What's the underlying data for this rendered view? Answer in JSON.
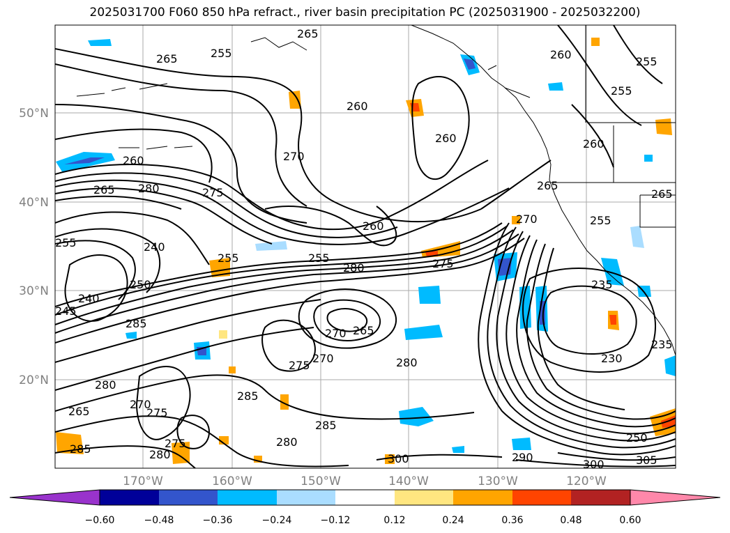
{
  "title": "2025031700 F060 850 hPa refract., river basin precipitation PC (2025031900 - 2025032200)",
  "map": {
    "lat_labels": [
      "50°N",
      "40°N",
      "30°N",
      "20°N"
    ],
    "lon_labels": [
      "170°W",
      "160°W",
      "150°W",
      "140°W",
      "130°W",
      "120°W"
    ],
    "contour_labels": [
      "265",
      "255",
      "265",
      "260",
      "260",
      "260",
      "270",
      "255",
      "260",
      "260",
      "255",
      "265",
      "280",
      "275",
      "265",
      "255",
      "240",
      "250",
      "240",
      "245",
      "285",
      "255",
      "280",
      "255",
      "275",
      "270",
      "260",
      "265",
      "270",
      "275",
      "270",
      "280",
      "285",
      "280",
      "265",
      "275",
      "270",
      "280",
      "275",
      "285",
      "280",
      "285",
      "300",
      "290",
      "300",
      "250",
      "305",
      "230",
      "235",
      "235",
      "255",
      "265"
    ]
  },
  "colorbar": {
    "tick_labels": [
      "−0.60",
      "−0.48",
      "−0.36",
      "−0.24",
      "−0.12",
      "0.12",
      "0.24",
      "0.36",
      "0.48",
      "0.60"
    ],
    "colors": [
      "#9933cc",
      "#000099",
      "#3355cc",
      "#00bbff",
      "#aaddff",
      "#ffffff",
      "#ffe680",
      "#ffa500",
      "#ff4400",
      "#b22222",
      "#ff88aa"
    ]
  }
}
